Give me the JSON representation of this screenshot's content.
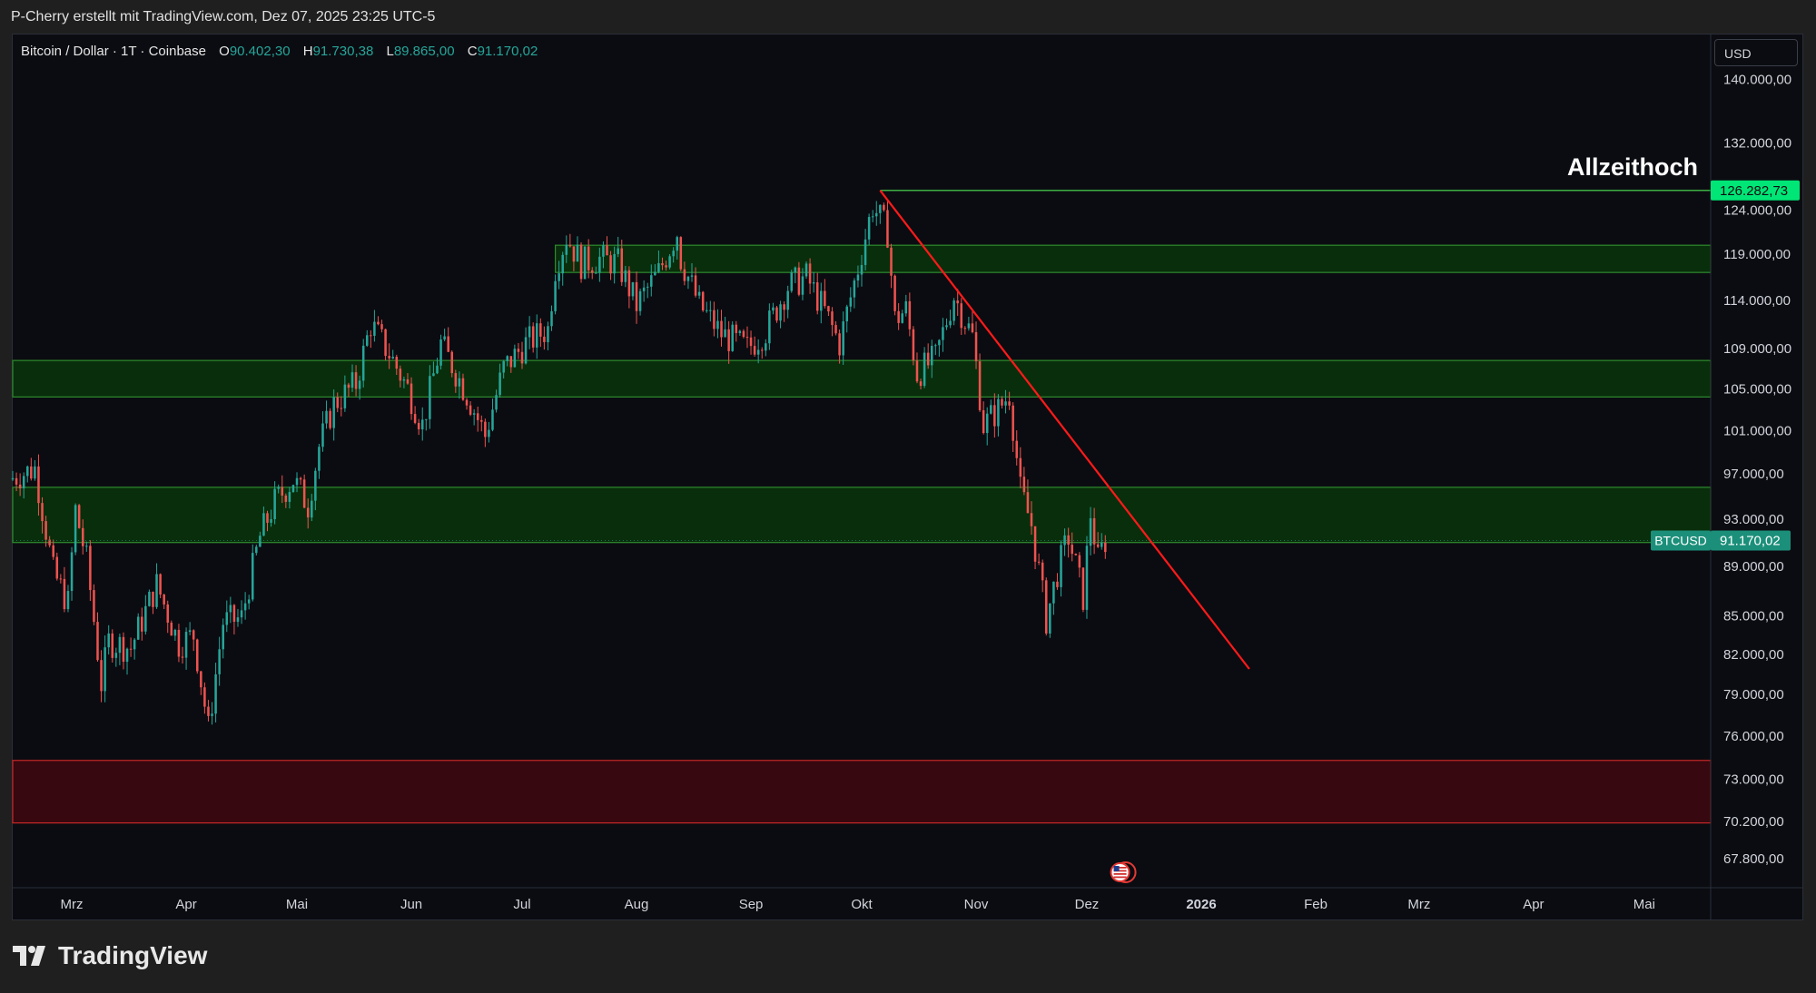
{
  "caption": "P-Cherry erstellt mit TradingView.com, Dez 07, 2025 23:25 UTC-5",
  "legend": {
    "symbol": "Bitcoin / Dollar · 1T · Coinbase",
    "o_label": "O",
    "o_value": "90.402,30",
    "h_label": "H",
    "h_value": "91.730,38",
    "l_label": "L",
    "l_value": "89.865,00",
    "c_label": "C",
    "c_value": "91.170,02"
  },
  "currency": "USD",
  "brand": "TradingView",
  "colors": {
    "up": "#26a69a",
    "down": "#ef5350",
    "zone_green": "#0a3a0a",
    "zone_green_border": "#2e8b2e",
    "zone_red": "#3a0810",
    "zone_red_border": "#c62828",
    "trendline": "#ff1a1a",
    "ath_badge": "#00e676",
    "price_badge": "#1b8f7a"
  },
  "chart_data": {
    "type": "candlestick",
    "y_scale": "log",
    "ylim": [
      66000,
      146000
    ],
    "x_tick_labels": [
      "Mrz",
      "Apr",
      "Mai",
      "Jun",
      "Jul",
      "Aug",
      "Sep",
      "Okt",
      "Nov",
      "Dez",
      "2026",
      "Feb",
      "Mrz",
      "Apr",
      "Mai"
    ],
    "x_tick_dates": [
      "2025-03-01",
      "2025-04-01",
      "2025-05-01",
      "2025-06-01",
      "2025-07-01",
      "2025-08-01",
      "2025-09-01",
      "2025-10-01",
      "2025-11-01",
      "2025-12-01",
      "2026-01-01",
      "2026-02-01",
      "2026-03-01",
      "2026-04-01",
      "2026-05-01"
    ],
    "x_range": [
      "2025-02-13",
      "2026-05-19"
    ],
    "y_tick_labels": [
      "140.000,00",
      "132.000,00",
      "124.000,00",
      "119.000,00",
      "114.000,00",
      "109.000,00",
      "105.000,00",
      "101.000,00",
      "97.000,00",
      "93.000,00",
      "89.000,00",
      "85.000,00",
      "82.000,00",
      "79.000,00",
      "76.000,00",
      "73.000,00",
      "70.200,00",
      "67.800,00"
    ],
    "y_tick_values": [
      140000,
      132000,
      124000,
      119000,
      114000,
      109000,
      105000,
      101000,
      97000,
      93000,
      89000,
      85000,
      82000,
      79000,
      76000,
      73000,
      70200,
      67800
    ],
    "zones": [
      {
        "kind": "support",
        "start": "2025-07-10",
        "low": 117000,
        "high": 120000
      },
      {
        "kind": "support",
        "start": "2025-02-13",
        "low": 104200,
        "high": 107800
      },
      {
        "kind": "support",
        "start": "2025-02-13",
        "low": 91000,
        "high": 95800
      },
      {
        "kind": "demand",
        "start": "2025-02-13",
        "low": 70100,
        "high": 74300
      }
    ],
    "ath_line": {
      "start": "2025-10-06",
      "value": 126282.73
    },
    "trendline": [
      {
        "date": "2025-10-06",
        "value": 126282.73
      },
      {
        "date": "2026-01-14",
        "value": 80900
      }
    ],
    "annotation": "Allzeithoch",
    "ath_badge_label": "126.282,73",
    "current_symbol": "BTCUSD",
    "current_price": 91170.02,
    "current_price_label": "91.170,02",
    "ohlc_points": [
      {
        "date": "2025-02-13",
        "close": 96500
      },
      {
        "date": "2025-02-20",
        "close": 97500
      },
      {
        "date": "2025-02-25",
        "close": 88500
      },
      {
        "date": "2025-03-01",
        "close": 86000
      },
      {
        "date": "2025-03-03",
        "close": 93800
      },
      {
        "date": "2025-03-06",
        "close": 89500
      },
      {
        "date": "2025-03-10",
        "close": 79800
      },
      {
        "date": "2025-03-12",
        "close": 83000
      },
      {
        "date": "2025-03-18",
        "close": 82500
      },
      {
        "date": "2025-03-25",
        "close": 87500
      },
      {
        "date": "2025-03-31",
        "close": 82800
      },
      {
        "date": "2025-04-04",
        "close": 83500
      },
      {
        "date": "2025-04-08",
        "close": 76500
      },
      {
        "date": "2025-04-12",
        "close": 84500
      },
      {
        "date": "2025-04-17",
        "close": 84800
      },
      {
        "date": "2025-04-22",
        "close": 91500
      },
      {
        "date": "2025-04-26",
        "close": 94500
      },
      {
        "date": "2025-05-01",
        "close": 96500
      },
      {
        "date": "2025-05-05",
        "close": 94200
      },
      {
        "date": "2025-05-08",
        "close": 99500
      },
      {
        "date": "2025-05-12",
        "close": 103500
      },
      {
        "date": "2025-05-18",
        "close": 105500
      },
      {
        "date": "2025-05-22",
        "close": 111500
      },
      {
        "date": "2025-05-27",
        "close": 108500
      },
      {
        "date": "2025-06-01",
        "close": 105000
      },
      {
        "date": "2025-06-05",
        "close": 101500
      },
      {
        "date": "2025-06-10",
        "close": 109500
      },
      {
        "date": "2025-06-17",
        "close": 104500
      },
      {
        "date": "2025-06-22",
        "close": 100500
      },
      {
        "date": "2025-06-27",
        "close": 107000
      },
      {
        "date": "2025-07-03",
        "close": 109500
      },
      {
        "date": "2025-07-09",
        "close": 111000
      },
      {
        "date": "2025-07-11",
        "close": 117500
      },
      {
        "date": "2025-07-14",
        "close": 121000
      },
      {
        "date": "2025-07-18",
        "close": 118000
      },
      {
        "date": "2025-07-23",
        "close": 118500
      },
      {
        "date": "2025-07-28",
        "close": 118000
      },
      {
        "date": "2025-08-02",
        "close": 113500
      },
      {
        "date": "2025-08-08",
        "close": 117000
      },
      {
        "date": "2025-08-13",
        "close": 121500
      },
      {
        "date": "2025-08-14",
        "close": 118500
      },
      {
        "date": "2025-08-19",
        "close": 113500
      },
      {
        "date": "2025-08-25",
        "close": 110500
      },
      {
        "date": "2025-09-01",
        "close": 109000
      },
      {
        "date": "2025-09-06",
        "close": 110800
      },
      {
        "date": "2025-09-12",
        "close": 115500
      },
      {
        "date": "2025-09-17",
        "close": 116500
      },
      {
        "date": "2025-09-22",
        "close": 112800
      },
      {
        "date": "2025-09-26",
        "close": 109500
      },
      {
        "date": "2025-10-01",
        "close": 117500
      },
      {
        "date": "2025-10-05",
        "close": 124500
      },
      {
        "date": "2025-10-09",
        "close": 121500
      },
      {
        "date": "2025-10-11",
        "close": 112000
      },
      {
        "date": "2025-10-14",
        "close": 113000
      },
      {
        "date": "2025-10-17",
        "close": 106500
      },
      {
        "date": "2025-10-22",
        "close": 108000
      },
      {
        "date": "2025-10-27",
        "close": 114500
      },
      {
        "date": "2025-11-01",
        "close": 110200
      },
      {
        "date": "2025-11-04",
        "close": 101500
      },
      {
        "date": "2025-11-08",
        "close": 103000
      },
      {
        "date": "2025-11-11",
        "close": 104500
      },
      {
        "date": "2025-11-14",
        "close": 95500
      },
      {
        "date": "2025-11-17",
        "close": 92500
      },
      {
        "date": "2025-11-21",
        "close": 84700
      },
      {
        "date": "2025-11-24",
        "close": 88500
      },
      {
        "date": "2025-11-27",
        "close": 91500
      },
      {
        "date": "2025-12-01",
        "close": 86500
      },
      {
        "date": "2025-12-03",
        "close": 93500
      },
      {
        "date": "2025-12-05",
        "close": 89500
      },
      {
        "date": "2025-12-07",
        "close": 91170
      }
    ]
  }
}
